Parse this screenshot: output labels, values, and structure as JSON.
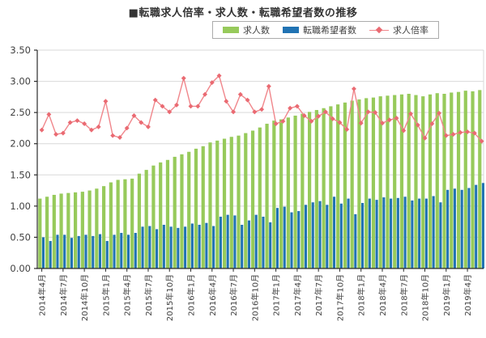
{
  "title": "■転職求人倍率・求人数・転職希望者数の推移",
  "legend": {
    "openings_label": "求人数",
    "seekers_label": "転職希望者数",
    "ratio_label": "求人倍率"
  },
  "colors": {
    "openings_bar": "#97CA5B",
    "seekers_bar": "#2173B3",
    "ratio_line": "#F0868B",
    "ratio_marker": "#EA6A72",
    "grid": "#D9D9D9",
    "spine_dark": "#2B2B2B",
    "tick_text": "#404040",
    "title_text": "#333333",
    "legend_border": "#ABABAB"
  },
  "y_axis": {
    "min": 0,
    "max": 3.5,
    "step": 0.5,
    "label_format_decimals": 2
  },
  "chart_data": {
    "type": "bar",
    "note": "grouped bars with overlaid line, monthly 2014-04 .. 2019-06",
    "x": [
      "2014年4月",
      "2014年5月",
      "2014年6月",
      "2014年7月",
      "2014年8月",
      "2014年9月",
      "2014年10月",
      "2014年11月",
      "2014年12月",
      "2015年1月",
      "2015年2月",
      "2015年3月",
      "2015年4月",
      "2015年5月",
      "2015年6月",
      "2015年7月",
      "2015年8月",
      "2015年9月",
      "2015年10月",
      "2015年11月",
      "2015年12月",
      "2016年1月",
      "2016年2月",
      "2016年3月",
      "2016年4月",
      "2016年5月",
      "2016年6月",
      "2016年7月",
      "2016年8月",
      "2016年9月",
      "2016年10月",
      "2016年11月",
      "2016年12月",
      "2017年1月",
      "2017年2月",
      "2017年3月",
      "2017年4月",
      "2017年5月",
      "2017年6月",
      "2017年7月",
      "2017年8月",
      "2017年9月",
      "2017年10月",
      "2017年11月",
      "2017年12月",
      "2018年1月",
      "2018年2月",
      "2018年3月",
      "2018年4月",
      "2018年5月",
      "2018年6月",
      "2018年7月",
      "2018年8月",
      "2018年9月",
      "2018年10月",
      "2018年11月",
      "2018年12月",
      "2019年1月",
      "2019年2月",
      "2019年3月",
      "2019年4月",
      "2019年5月",
      "2019年6月"
    ],
    "x_tick_every": 3,
    "ylim": [
      0,
      3.5
    ],
    "grid": true,
    "legend_position": "top",
    "series": [
      {
        "name": "求人数",
        "type": "bar",
        "color": "#97CA5B",
        "values": [
          1.12,
          1.15,
          1.18,
          1.2,
          1.21,
          1.22,
          1.23,
          1.25,
          1.28,
          1.32,
          1.38,
          1.42,
          1.43,
          1.44,
          1.52,
          1.58,
          1.65,
          1.7,
          1.74,
          1.79,
          1.83,
          1.87,
          1.92,
          1.96,
          2.02,
          2.05,
          2.08,
          2.11,
          2.13,
          2.17,
          2.21,
          2.26,
          2.32,
          2.37,
          2.39,
          2.42,
          2.45,
          2.48,
          2.51,
          2.54,
          2.57,
          2.6,
          2.63,
          2.66,
          2.69,
          2.71,
          2.73,
          2.74,
          2.76,
          2.77,
          2.78,
          2.79,
          2.8,
          2.78,
          2.76,
          2.79,
          2.81,
          2.8,
          2.82,
          2.83,
          2.85,
          2.84,
          2.86
        ]
      },
      {
        "name": "転職希望者数",
        "type": "bar",
        "color": "#2173B3",
        "values": [
          0.5,
          0.44,
          0.54,
          0.54,
          0.49,
          0.52,
          0.54,
          0.52,
          0.55,
          0.44,
          0.54,
          0.57,
          0.54,
          0.57,
          0.67,
          0.68,
          0.63,
          0.7,
          0.67,
          0.65,
          0.67,
          0.72,
          0.7,
          0.73,
          0.68,
          0.83,
          0.86,
          0.85,
          0.7,
          0.77,
          0.86,
          0.83,
          0.74,
          0.97,
          0.99,
          0.9,
          0.92,
          1.02,
          1.06,
          1.08,
          1.02,
          1.15,
          1.04,
          1.12,
          0.87,
          1.05,
          1.12,
          1.1,
          1.14,
          1.12,
          1.13,
          1.15,
          1.09,
          1.12,
          1.12,
          1.16,
          1.06,
          1.26,
          1.28,
          1.26,
          1.29,
          1.34,
          1.37
        ]
      },
      {
        "name": "求人倍率",
        "type": "line",
        "color": "#F0868B",
        "values": [
          2.22,
          2.47,
          2.15,
          2.17,
          2.34,
          2.37,
          2.32,
          2.22,
          2.27,
          2.68,
          2.13,
          2.1,
          2.25,
          2.45,
          2.34,
          2.27,
          2.7,
          2.6,
          2.51,
          2.62,
          3.05,
          2.6,
          2.6,
          2.79,
          2.98,
          3.09,
          2.68,
          2.51,
          2.79,
          2.7,
          2.51,
          2.55,
          2.92,
          2.32,
          2.36,
          2.57,
          2.6,
          2.45,
          2.36,
          2.44,
          2.51,
          2.4,
          2.34,
          2.23,
          2.88,
          2.33,
          2.51,
          2.5,
          2.33,
          2.38,
          2.41,
          2.21,
          2.48,
          2.3,
          2.09,
          2.32,
          2.49,
          2.13,
          2.15,
          2.18,
          2.19,
          2.17,
          2.04
        ]
      }
    ]
  }
}
